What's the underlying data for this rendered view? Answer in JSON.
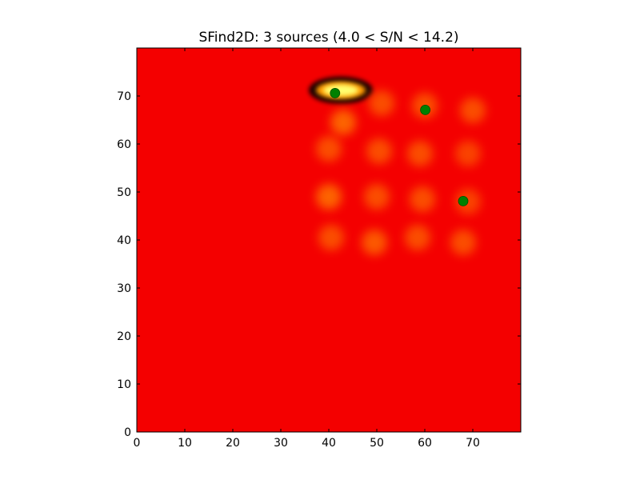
{
  "chart_data": {
    "type": "heatmap",
    "title": "SFind2D: 3 sources (4.0 < S/N < 14.2)",
    "xlabel": "",
    "ylabel": "",
    "xlim": [
      0,
      80
    ],
    "ylim": [
      0,
      80
    ],
    "x_ticks": [
      0,
      10,
      20,
      30,
      40,
      50,
      60,
      70
    ],
    "y_ticks": [
      0,
      10,
      20,
      30,
      40,
      50,
      60,
      70
    ],
    "grid": false,
    "colormap": "hot",
    "background_color": "#f40000",
    "series": [
      {
        "type": "scatter",
        "color": "#008000",
        "points": [
          {
            "x": 41.3,
            "y": 70.6
          },
          {
            "x": 60.1,
            "y": 67.1
          },
          {
            "x": 68.0,
            "y": 48.1
          }
        ]
      }
    ],
    "heat_blobs": [
      {
        "x": 42.5,
        "y": 71.2,
        "level": 1.0
      },
      {
        "x": 43.0,
        "y": 64.5,
        "level": 0.45
      },
      {
        "x": 51.0,
        "y": 68.5,
        "level": 0.35
      },
      {
        "x": 60.0,
        "y": 68.0,
        "level": 0.35
      },
      {
        "x": 70.0,
        "y": 67.0,
        "level": 0.35
      },
      {
        "x": 40.0,
        "y": 59.0,
        "level": 0.35
      },
      {
        "x": 50.5,
        "y": 58.5,
        "level": 0.35
      },
      {
        "x": 59.0,
        "y": 58.0,
        "level": 0.35
      },
      {
        "x": 69.0,
        "y": 58.0,
        "level": 0.3
      },
      {
        "x": 40.0,
        "y": 49.0,
        "level": 0.45
      },
      {
        "x": 50.0,
        "y": 49.0,
        "level": 0.35
      },
      {
        "x": 59.5,
        "y": 48.5,
        "level": 0.35
      },
      {
        "x": 69.0,
        "y": 48.0,
        "level": 0.3
      },
      {
        "x": 40.5,
        "y": 40.5,
        "level": 0.35
      },
      {
        "x": 49.5,
        "y": 39.5,
        "level": 0.4
      },
      {
        "x": 58.5,
        "y": 40.5,
        "level": 0.35
      },
      {
        "x": 68.0,
        "y": 39.5,
        "level": 0.35
      }
    ],
    "dark_blobs": [
      {
        "x": 42.5,
        "y": 71.2,
        "level": 0.9
      }
    ]
  }
}
